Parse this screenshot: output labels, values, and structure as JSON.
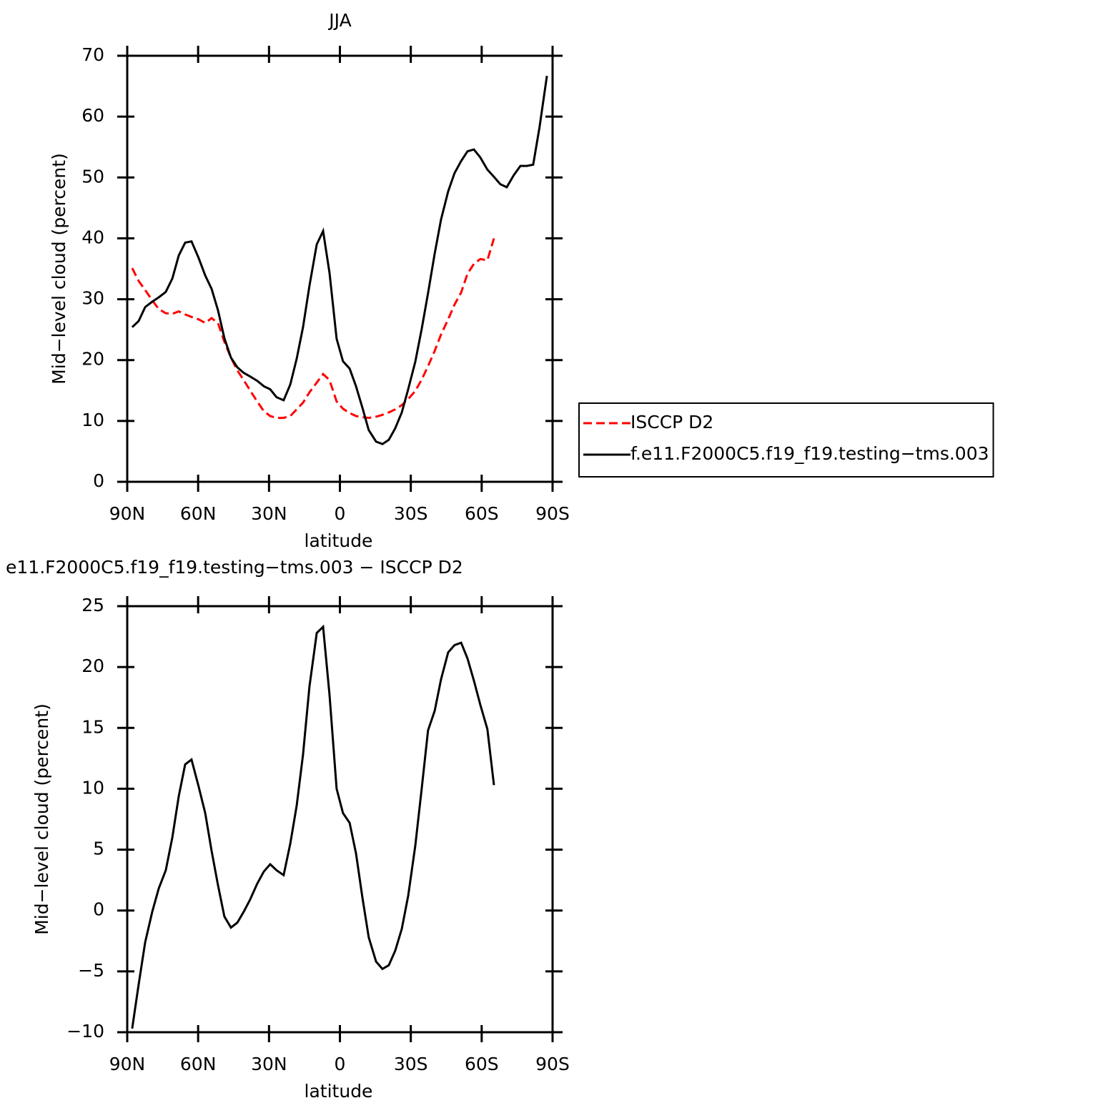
{
  "chart_data": [
    {
      "type": "line",
      "title": "JJA",
      "x_label": "latitude",
      "y_label": "Mid−level cloud (percent)",
      "x": [
        87.9,
        85.2,
        82.4,
        79.4,
        76.7,
        73.7,
        70.9,
        68.2,
        65.5,
        62.8,
        59.8,
        57.0,
        54.3,
        51.6,
        48.9,
        46.1,
        43.4,
        40.7,
        38.0,
        35.0,
        32.2,
        29.5,
        26.8,
        23.8,
        21.0,
        18.3,
        15.6,
        12.9,
        9.8,
        7.1,
        4.4,
        1.4,
        -1.3,
        -4.1,
        -6.8,
        -9.5,
        -12.2,
        -15.3,
        -18.0,
        -20.7,
        -23.4,
        -26.2,
        -28.9,
        -31.9,
        -34.6,
        -37.3,
        -40.1,
        -42.8,
        -45.8,
        -48.5,
        -51.3,
        -54.0,
        -56.7,
        -59.4,
        -62.4,
        -65.2,
        -67.9,
        -70.6,
        -73.6,
        -76.4,
        -79.1,
        -81.8,
        -84.5,
        -87.6
      ],
      "series": [
        {
          "name": "ISCCP D2",
          "color": "#ff0000",
          "line_style": "dashed",
          "values": [
            35.1,
            33.0,
            31.5,
            29.8,
            28.4,
            27.7,
            27.6,
            28.0,
            27.5,
            27.1,
            26.7,
            26.1,
            26.9,
            26.1,
            23.0,
            20.4,
            18.3,
            16.7,
            15.0,
            13.2,
            11.6,
            10.8,
            10.5,
            10.5,
            10.8,
            11.9,
            13.0,
            14.7,
            16.3,
            17.7,
            16.7,
            13.2,
            12.0,
            11.3,
            10.8,
            10.6,
            10.5,
            10.7,
            11.0,
            11.4,
            11.9,
            12.6,
            13.6,
            14.9,
            16.8,
            19.0,
            21.5,
            24.2,
            26.7,
            29.1,
            31.1,
            34.2,
            35.8,
            36.6,
            36.4,
            40.0,
            null,
            null,
            null,
            null,
            null,
            null,
            null,
            null
          ]
        },
        {
          "name": "f.e11.F2000C5.f19_f19.testing−tms.003",
          "color": "#000000",
          "line_style": "solid",
          "values": [
            25.4,
            26.4,
            28.7,
            29.6,
            30.3,
            31.2,
            33.4,
            37.2,
            39.3,
            39.5,
            36.8,
            33.9,
            31.7,
            28.2,
            23.6,
            20.4,
            18.8,
            17.9,
            17.3,
            16.6,
            15.7,
            15.2,
            13.9,
            13.4,
            16.0,
            20.2,
            25.4,
            32.2,
            39.0,
            41.2,
            34.3,
            23.5,
            19.8,
            18.6,
            15.7,
            12.2,
            8.5,
            6.6,
            6.2,
            6.9,
            8.8,
            11.4,
            15.2,
            19.7,
            25.1,
            31.0,
            37.5,
            43.1,
            47.7,
            50.7,
            52.7,
            54.3,
            54.6,
            53.3,
            51.3,
            50.1,
            48.9,
            48.4,
            50.4,
            51.9,
            51.9,
            52.1,
            58.3,
            66.7
          ]
        }
      ],
      "xlim": [
        90,
        -90
      ],
      "xticks": [
        {
          "value": 90,
          "label": "90N"
        },
        {
          "value": 60,
          "label": "60N"
        },
        {
          "value": 30,
          "label": "30N"
        },
        0,
        {
          "value": -30,
          "label": "30S"
        },
        {
          "value": -60,
          "label": "60S"
        },
        {
          "value": -90,
          "label": "90S"
        }
      ],
      "ylim": [
        0,
        70
      ],
      "yticks": [
        0,
        10,
        20,
        30,
        40,
        50,
        60,
        70
      ],
      "grid": false,
      "legend": "right"
    },
    {
      "type": "line",
      "title": "e11.F2000C5.f19_f19.testing−tms.003 − ISCCP D2",
      "x_label": "latitude",
      "y_label": "Mid−level cloud (percent)",
      "x": [
        87.9,
        85.2,
        82.4,
        79.4,
        76.7,
        73.7,
        70.9,
        68.2,
        65.5,
        62.8,
        59.8,
        57.0,
        54.3,
        51.6,
        48.9,
        46.1,
        43.4,
        40.7,
        38.0,
        35.0,
        32.2,
        29.5,
        26.8,
        23.8,
        21.0,
        18.3,
        15.6,
        12.9,
        9.8,
        7.1,
        4.4,
        1.4,
        -1.3,
        -4.1,
        -6.8,
        -9.5,
        -12.2,
        -15.3,
        -18.0,
        -20.7,
        -23.4,
        -26.2,
        -28.9,
        -31.9,
        -34.6,
        -37.3,
        -40.1,
        -42.8,
        -45.8,
        -48.5,
        -51.3,
        -54.0,
        -56.7,
        -59.4,
        -62.4,
        -65.2
      ],
      "series": [
        {
          "color": "#000000",
          "line_style": "solid",
          "values": [
            -9.7,
            -6.1,
            -2.6,
            -0.1,
            1.8,
            3.3,
            6.0,
            9.4,
            12.0,
            12.4,
            10.2,
            8.0,
            4.9,
            2.1,
            -0.5,
            -1.4,
            -1.0,
            -0.1,
            0.9,
            2.2,
            3.2,
            3.8,
            3.3,
            2.9,
            5.5,
            8.6,
            12.8,
            18.4,
            22.8,
            23.3,
            17.7,
            10.0,
            8.0,
            7.2,
            4.7,
            1.1,
            -2.2,
            -4.2,
            -4.8,
            -4.5,
            -3.3,
            -1.5,
            1.2,
            5.3,
            10.0,
            14.8,
            16.4,
            19.0,
            21.2,
            21.8,
            22.0,
            20.7,
            18.9,
            16.9,
            14.9,
            10.3
          ]
        }
      ],
      "xlim": [
        90,
        -90
      ],
      "xticks": [
        {
          "value": 90,
          "label": "90N"
        },
        {
          "value": 60,
          "label": "60N"
        },
        {
          "value": 30,
          "label": "30N"
        },
        0,
        {
          "value": -30,
          "label": "30S"
        },
        {
          "value": -60,
          "label": "60S"
        },
        {
          "value": -90,
          "label": "90S"
        }
      ],
      "ylim": [
        -10,
        25
      ],
      "yticks": [
        {
          "value": -10,
          "label": "−10"
        },
        {
          "value": -5,
          "label": "−5"
        },
        0,
        5,
        10,
        15,
        20,
        25
      ],
      "grid": false
    }
  ]
}
